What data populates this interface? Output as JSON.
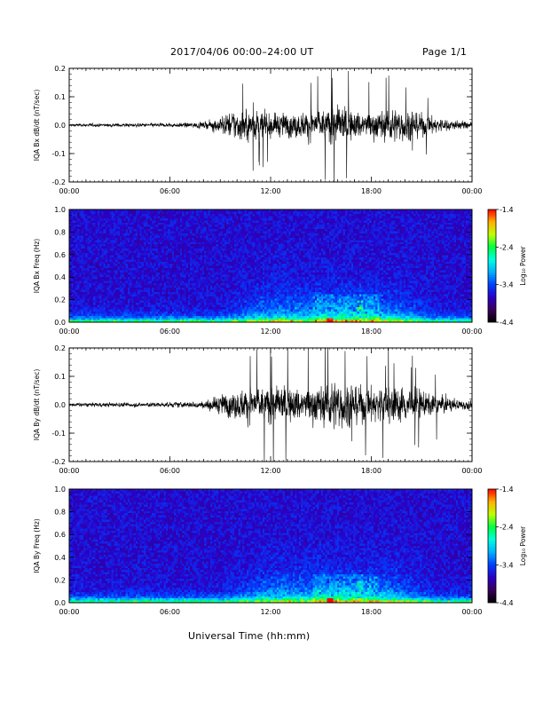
{
  "header": {
    "title": "2017/04/06  00:00–24:00 UT",
    "page": "Page 1/1"
  },
  "x_axis": {
    "label": "Universal Time (hh:mm)",
    "tick_labels": [
      "00:00",
      "06:00",
      "12:00",
      "18:00",
      "00:00"
    ]
  },
  "colors": {
    "trace": "#000000",
    "colormap": [
      "#000000",
      "#3a005a",
      "#2a00c8",
      "#0040ff",
      "#00b0ff",
      "#00ffe0",
      "#00ff40",
      "#c0ff00",
      "#ffb000",
      "#ff0000"
    ]
  },
  "colorbar": {
    "label": "Log₁₀ Power",
    "tick_labels": [
      "-1.4",
      "-2.4",
      "-3.4",
      "-4.4"
    ],
    "range": [
      -4.4,
      -1.4
    ]
  },
  "chart_data": [
    {
      "type": "line",
      "ylabel": "IQA Bx dB/dt (nT/sec)",
      "ylim": [
        -0.2,
        0.2
      ],
      "y_ticks": [
        "0.2",
        "0.1",
        "0.0",
        "-0.1",
        "-0.2"
      ],
      "xlim_hours": [
        0,
        24
      ],
      "envelope": {
        "time_hours": [
          0,
          3,
          6,
          8,
          9,
          10,
          11,
          12,
          13,
          14,
          15,
          16,
          17,
          18,
          19,
          20,
          21,
          22,
          23,
          24
        ],
        "amplitude": [
          0.012,
          0.014,
          0.016,
          0.025,
          0.07,
          0.13,
          0.13,
          0.1,
          0.1,
          0.11,
          0.13,
          0.17,
          0.12,
          0.11,
          0.13,
          0.13,
          0.1,
          0.06,
          0.04,
          0.03
        ]
      }
    },
    {
      "type": "heatmap",
      "ylabel": "IQA Bx Freq (Hz)",
      "ylim": [
        0,
        1
      ],
      "y_ticks": [
        "1.0",
        "0.8",
        "0.6",
        "0.4",
        "0.2",
        "0.0"
      ],
      "xlim_hours": [
        0,
        24
      ],
      "colorbar_label": "Log₁₀ Power",
      "colorbar_ticks": [
        "-1.4",
        "-2.4",
        "-3.4",
        "-4.4"
      ],
      "z_range": [
        -4.4,
        -1.4
      ]
    },
    {
      "type": "line",
      "ylabel": "IQA By dB/dt (nT/sec)",
      "ylim": [
        -0.2,
        0.2
      ],
      "y_ticks": [
        "0.2",
        "0.1",
        "0.0",
        "-0.1",
        "-0.2"
      ],
      "xlim_hours": [
        0,
        24
      ],
      "envelope": {
        "time_hours": [
          0,
          3,
          6,
          8,
          9,
          10,
          11,
          12,
          13,
          14,
          15,
          16,
          17,
          18,
          19,
          20,
          21,
          22,
          23,
          24
        ],
        "amplitude": [
          0.015,
          0.018,
          0.02,
          0.03,
          0.08,
          0.12,
          0.14,
          0.16,
          0.15,
          0.14,
          0.16,
          0.2,
          0.16,
          0.15,
          0.16,
          0.14,
          0.12,
          0.08,
          0.05,
          0.04
        ]
      }
    },
    {
      "type": "heatmap",
      "ylabel": "IQA By Freq (Hz)",
      "ylim": [
        0,
        1
      ],
      "y_ticks": [
        "1.0",
        "0.8",
        "0.6",
        "0.4",
        "0.2",
        "0.0"
      ],
      "xlim_hours": [
        0,
        24
      ],
      "colorbar_label": "Log₁₀ Power",
      "colorbar_ticks": [
        "-1.4",
        "-2.4",
        "-3.4",
        "-4.4"
      ],
      "z_range": [
        -4.4,
        -1.4
      ]
    }
  ]
}
